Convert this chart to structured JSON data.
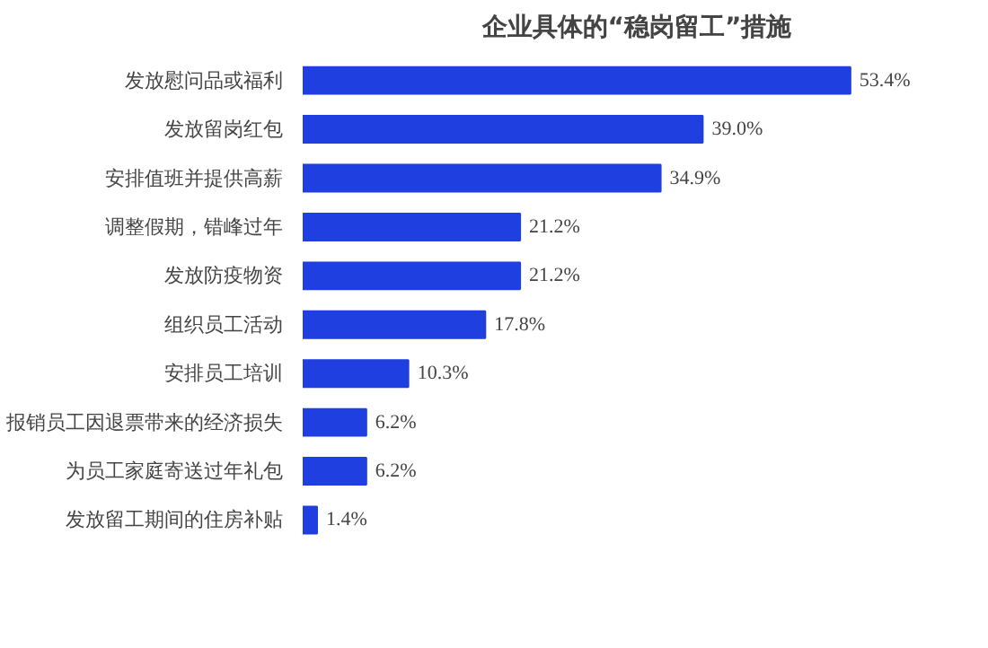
{
  "chart_data": {
    "type": "bar",
    "orientation": "horizontal",
    "title": "企业具体的“稳岗留工”措施",
    "categories": [
      "发放慰问品或福利",
      "发放留岗红包",
      "安排值班并提供高薪",
      "调整假期，错峰过年",
      "发放防疫物资",
      "组织员工活动",
      "安排员工培训",
      "报销员工因退票带来的经济损失",
      "为员工家庭寄送过年礼包",
      "发放留工期间的住房补贴"
    ],
    "values": [
      53.4,
      39.0,
      34.9,
      21.2,
      21.2,
      17.8,
      10.3,
      6.2,
      6.2,
      1.4
    ],
    "value_labels": [
      "53.4%",
      "39.0%",
      "34.9%",
      "21.2%",
      "21.2%",
      "17.8%",
      "10.3%",
      "6.2%",
      "6.2%",
      "1.4%"
    ],
    "color": "#1f3fe0",
    "grid": false
  }
}
